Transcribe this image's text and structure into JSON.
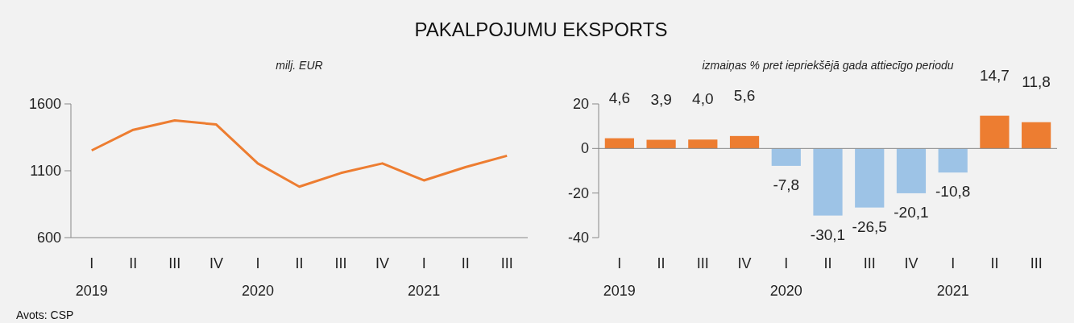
{
  "chart_data": [
    {
      "type": "line",
      "title": "PAKALPOJUMU EKSPORTS",
      "subtitle": "milj. EUR",
      "categories": [
        "I\n2019",
        "II",
        "III",
        "IV",
        "I\n2020",
        "II",
        "III",
        "IV",
        "I\n2021",
        "II",
        "III"
      ],
      "series": [
        {
          "color": "#ed7d31",
          "values": [
            1252,
            1406,
            1476,
            1446,
            1155,
            981,
            1083,
            1155,
            1028,
            1127,
            1212
          ]
        }
      ],
      "ylim": [
        600,
        1600
      ],
      "yticks": [
        600,
        1100,
        1600
      ],
      "marker": "none",
      "annotations": [
        "Avots: CSP"
      ]
    },
    {
      "type": "bar",
      "subtitle": "izmaiņas % pret iepriekšējā gada attiecīgo periodu",
      "categories": [
        "I\n2019",
        "II",
        "III",
        "IV",
        "I\n2020",
        "II",
        "III",
        "IV",
        "I\n2021",
        "II",
        "III"
      ],
      "values": [
        4.6,
        3.9,
        4.0,
        5.6,
        -7.8,
        -30.1,
        -26.5,
        -20.1,
        -10.8,
        14.7,
        11.8
      ],
      "colors": [
        "#ed7d31",
        "#ed7d31",
        "#ed7d31",
        "#ed7d31",
        "#9dc3e6",
        "#9dc3e6",
        "#9dc3e6",
        "#9dc3e6",
        "#9dc3e6",
        "#ed7d31",
        "#ed7d31"
      ],
      "value_labels": [
        "4,6",
        "3,9",
        "4,0",
        "5,6",
        "-7,8",
        "-30,1",
        "-26,5",
        "-20,1",
        "-10,8",
        "14,7",
        "11,8"
      ],
      "ylim": [
        -40,
        20
      ],
      "yticks": [
        -40,
        -20,
        0,
        20
      ]
    }
  ]
}
